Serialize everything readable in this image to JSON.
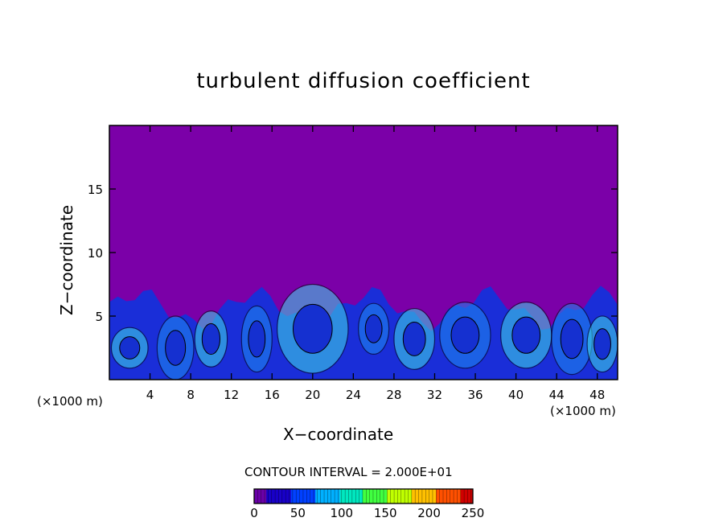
{
  "chart_data": {
    "type": "heatmap",
    "title": "turbulent diffusion coefficient",
    "xlabel": "X−coordinate",
    "ylabel": "Z−coordinate",
    "x_unit_label": "(×1000 m)",
    "x_ticks": [
      4,
      8,
      12,
      16,
      20,
      24,
      28,
      32,
      36,
      40,
      44,
      48
    ],
    "y_ticks": [
      5,
      10,
      15
    ],
    "xlim": [
      0,
      50
    ],
    "ylim": [
      0,
      20
    ],
    "contour_interval_label": "CONTOUR INTERVAL = 2.000E+01",
    "colorbar": {
      "ticks": [
        0,
        50,
        100,
        150,
        200,
        250
      ],
      "range": [
        0,
        250
      ],
      "colors": [
        "#6a00a8",
        "#1800c8",
        "#0040ff",
        "#00b0ff",
        "#00e8c0",
        "#40ff40",
        "#c0ff00",
        "#ffc000",
        "#ff5000",
        "#d00000"
      ]
    },
    "field": {
      "background_value": 0,
      "turbulent_layer_top_z": 7,
      "description_colors": {
        "quiet": "#7b00a8",
        "low": "#1a2ed8",
        "mid": "#1f8cf0",
        "high": "#3fdce8"
      }
    }
  }
}
